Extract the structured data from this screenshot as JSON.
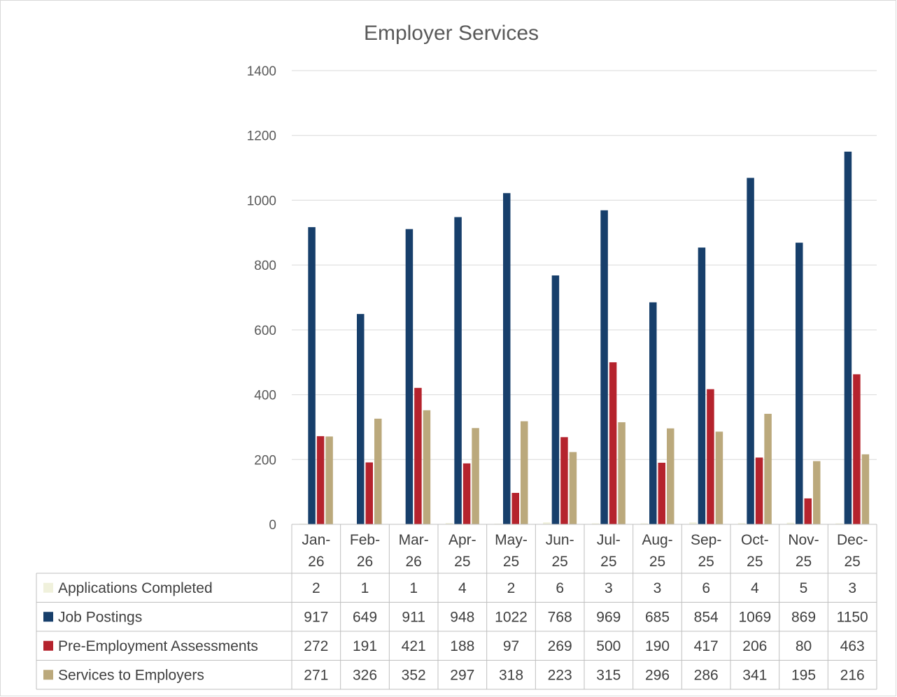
{
  "chart_data": {
    "type": "bar",
    "title": "Employer Services",
    "xlabel": "",
    "ylabel": "",
    "ylim": [
      0,
      1400
    ],
    "yticks": [
      0,
      200,
      400,
      600,
      800,
      1000,
      1200,
      1400
    ],
    "grid": true,
    "legend": "data-table",
    "categories": [
      "Jan-26",
      "Feb-26",
      "Mar-26",
      "Apr-25",
      "May-25",
      "Jun-25",
      "Jul-25",
      "Aug-25",
      "Sep-25",
      "Oct-25",
      "Nov-25",
      "Dec-25"
    ],
    "category_lines": [
      [
        "Jan-",
        "26"
      ],
      [
        "Feb-",
        "26"
      ],
      [
        "Mar-",
        "26"
      ],
      [
        "Apr-",
        "25"
      ],
      [
        "May-",
        "25"
      ],
      [
        "Jun-",
        "25"
      ],
      [
        "Jul-",
        "25"
      ],
      [
        "Aug-",
        "25"
      ],
      [
        "Sep-",
        "25"
      ],
      [
        "Oct-",
        "25"
      ],
      [
        "Nov-",
        "25"
      ],
      [
        "Dec-",
        "25"
      ]
    ],
    "series": [
      {
        "name": "Applications Completed",
        "color": "#f0f1dc",
        "values": [
          2,
          1,
          1,
          4,
          2,
          6,
          3,
          3,
          6,
          4,
          5,
          3
        ]
      },
      {
        "name": "Job Postings",
        "color": "#173f6b",
        "values": [
          917,
          649,
          911,
          948,
          1022,
          768,
          969,
          685,
          854,
          1069,
          869,
          1150
        ]
      },
      {
        "name": "Pre-Employment Assessments",
        "color": "#b5232d",
        "values": [
          272,
          191,
          421,
          188,
          97,
          269,
          500,
          190,
          417,
          206,
          80,
          463
        ]
      },
      {
        "name": "Services to Employers",
        "color": "#bba97c",
        "values": [
          271,
          326,
          352,
          297,
          318,
          223,
          315,
          296,
          286,
          341,
          195,
          216
        ]
      }
    ]
  }
}
